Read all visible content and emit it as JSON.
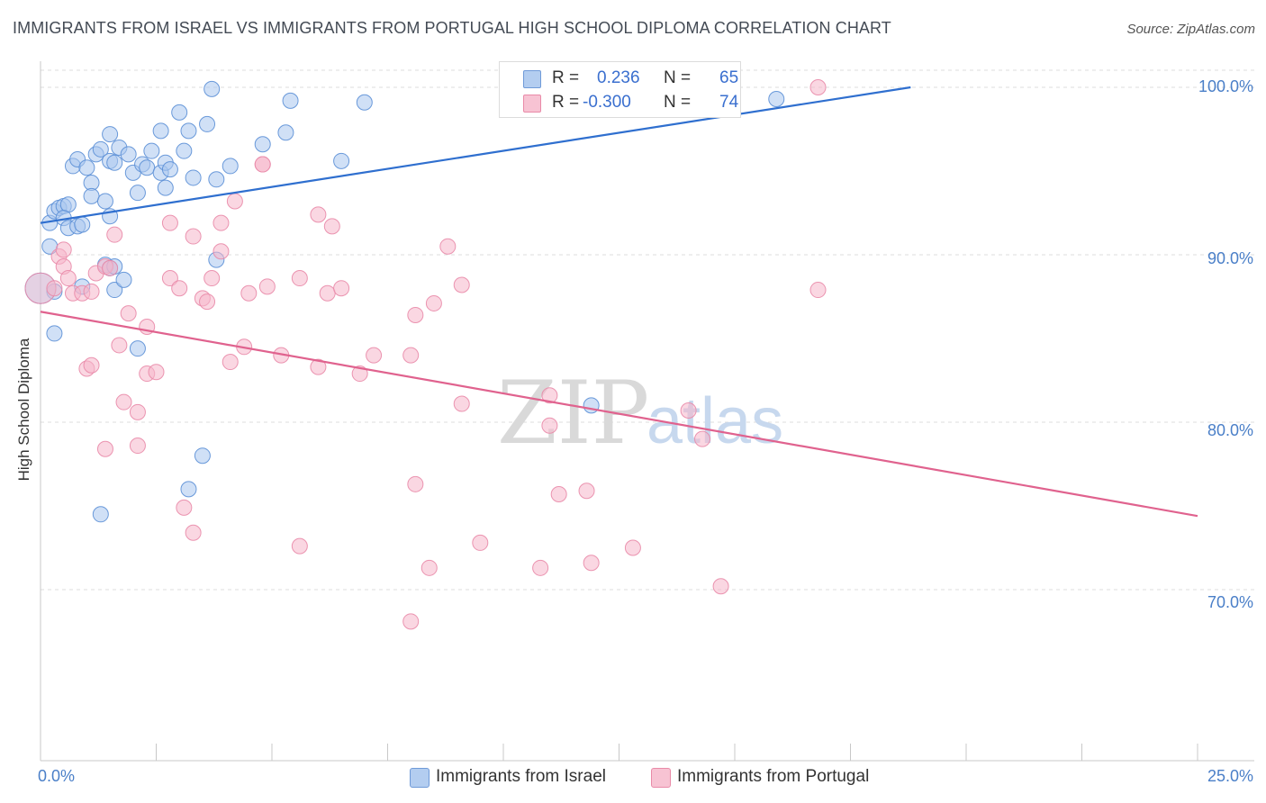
{
  "title": "IMMIGRANTS FROM ISRAEL VS IMMIGRANTS FROM PORTUGAL HIGH SCHOOL DIPLOMA CORRELATION CHART",
  "source": "Source: ZipAtlas.com",
  "watermark": {
    "part1": "ZIP",
    "part2": "atlas"
  },
  "legend_top": {
    "rows": [
      {
        "r_label": "R =",
        "r_value": "0.236",
        "n_label": "N =",
        "n_value": "65"
      },
      {
        "r_label": "R =",
        "r_value": "-0.300",
        "n_label": "N =",
        "n_value": "74"
      }
    ]
  },
  "legend_bottom": {
    "israel": "Immigrants from Israel",
    "portugal": "Immigrants from Portugal"
  },
  "colors": {
    "israel_fill": "#a9c6ee",
    "israel_stroke": "#5b8fd6",
    "israel_line": "#2f6fcf",
    "portugal_fill": "#f5b7ca",
    "portugal_stroke": "#e98aa8",
    "portugal_line": "#e0628e",
    "tick_text": "#4a7fc8",
    "grid": "#dddddd"
  },
  "chart_data": {
    "type": "scatter",
    "title": "IMMIGRANTS FROM ISRAEL VS IMMIGRANTS FROM PORTUGAL HIGH SCHOOL DIPLOMA CORRELATION CHART",
    "xlabel": "",
    "ylabel": "High School Diploma",
    "xlim": [
      0,
      25
    ],
    "ylim": [
      60,
      101
    ],
    "x_tick_labels": [
      "0.0%",
      "25.0%"
    ],
    "y_ticks": [
      70,
      80,
      90,
      100
    ],
    "y_tick_labels": [
      "70.0%",
      "80.0%",
      "90.0%",
      "100.0%"
    ],
    "grid": true,
    "legend_position": "top-center",
    "series": [
      {
        "name": "Immigrants from Israel",
        "R": 0.236,
        "N": 65,
        "trendline": {
          "x": [
            0.0,
            18.8
          ],
          "y": [
            91.9,
            100.0
          ]
        },
        "points": [
          [
            0.2,
            91.9
          ],
          [
            0.3,
            92.6
          ],
          [
            0.4,
            92.8
          ],
          [
            0.5,
            92.9
          ],
          [
            0.6,
            93.0
          ],
          [
            0.5,
            92.2
          ],
          [
            0.6,
            91.6
          ],
          [
            0.8,
            91.7
          ],
          [
            0.9,
            91.8
          ],
          [
            0.7,
            95.3
          ],
          [
            0.8,
            95.7
          ],
          [
            1.0,
            95.2
          ],
          [
            1.1,
            94.3
          ],
          [
            1.1,
            93.5
          ],
          [
            1.2,
            96.0
          ],
          [
            1.3,
            96.3
          ],
          [
            1.5,
            95.6
          ],
          [
            1.6,
            95.5
          ],
          [
            1.5,
            97.2
          ],
          [
            1.7,
            96.4
          ],
          [
            1.9,
            96.0
          ],
          [
            2.0,
            94.9
          ],
          [
            2.1,
            93.7
          ],
          [
            2.2,
            95.4
          ],
          [
            2.3,
            95.2
          ],
          [
            2.4,
            96.2
          ],
          [
            2.6,
            94.9
          ],
          [
            2.7,
            95.5
          ],
          [
            2.8,
            95.1
          ],
          [
            2.7,
            94.0
          ],
          [
            2.6,
            97.4
          ],
          [
            3.0,
            98.5
          ],
          [
            3.1,
            96.2
          ],
          [
            3.2,
            97.4
          ],
          [
            3.3,
            94.6
          ],
          [
            3.6,
            97.8
          ],
          [
            3.7,
            99.9
          ],
          [
            3.8,
            94.5
          ],
          [
            4.1,
            95.3
          ],
          [
            4.8,
            96.6
          ],
          [
            5.3,
            97.3
          ],
          [
            5.4,
            99.2
          ],
          [
            6.5,
            95.6
          ],
          [
            7.0,
            99.1
          ],
          [
            10.3,
            99.9
          ],
          [
            11.0,
            99.8
          ],
          [
            15.9,
            99.3
          ],
          [
            1.4,
            93.2
          ],
          [
            1.5,
            92.3
          ],
          [
            0.2,
            90.5
          ],
          [
            0.3,
            87.8
          ],
          [
            0.9,
            88.1
          ],
          [
            1.4,
            89.4
          ],
          [
            1.5,
            89.2
          ],
          [
            1.6,
            87.9
          ],
          [
            1.8,
            88.5
          ],
          [
            3.8,
            89.7
          ],
          [
            0.3,
            85.3
          ],
          [
            2.1,
            84.4
          ],
          [
            3.5,
            78.0
          ],
          [
            3.2,
            76.0
          ],
          [
            1.3,
            74.5
          ],
          [
            11.9,
            81.0
          ],
          [
            0.0,
            88.0
          ],
          [
            1.6,
            89.3
          ]
        ]
      },
      {
        "name": "Immigrants from Portugal",
        "R": -0.3,
        "N": 74,
        "trendline": {
          "x": [
            0.0,
            25.0
          ],
          "y": [
            86.6,
            74.4
          ]
        },
        "points": [
          [
            0.0,
            88.0
          ],
          [
            0.3,
            88.0
          ],
          [
            0.4,
            89.9
          ],
          [
            0.5,
            89.3
          ],
          [
            0.5,
            90.3
          ],
          [
            0.6,
            88.6
          ],
          [
            0.7,
            87.7
          ],
          [
            0.9,
            87.7
          ],
          [
            1.1,
            87.8
          ],
          [
            1.2,
            88.9
          ],
          [
            1.4,
            89.3
          ],
          [
            1.5,
            89.2
          ],
          [
            1.6,
            91.2
          ],
          [
            1.9,
            86.5
          ],
          [
            2.3,
            85.7
          ],
          [
            2.8,
            91.9
          ],
          [
            2.8,
            88.6
          ],
          [
            3.0,
            88.0
          ],
          [
            3.3,
            91.1
          ],
          [
            3.5,
            87.4
          ],
          [
            3.6,
            87.2
          ],
          [
            3.7,
            88.6
          ],
          [
            3.9,
            90.2
          ],
          [
            3.9,
            91.9
          ],
          [
            4.2,
            93.2
          ],
          [
            4.5,
            87.7
          ],
          [
            4.8,
            95.4
          ],
          [
            4.8,
            95.4
          ],
          [
            4.9,
            88.1
          ],
          [
            5.2,
            84.0
          ],
          [
            4.4,
            84.5
          ],
          [
            4.1,
            83.6
          ],
          [
            1.0,
            83.2
          ],
          [
            1.1,
            83.4
          ],
          [
            1.7,
            84.6
          ],
          [
            1.8,
            81.2
          ],
          [
            2.1,
            80.6
          ],
          [
            2.3,
            82.9
          ],
          [
            2.5,
            83.0
          ],
          [
            1.4,
            78.4
          ],
          [
            2.1,
            78.6
          ],
          [
            3.1,
            74.9
          ],
          [
            3.3,
            73.4
          ],
          [
            5.6,
            88.6
          ],
          [
            6.0,
            92.4
          ],
          [
            6.3,
            91.7
          ],
          [
            6.2,
            87.7
          ],
          [
            6.5,
            88.0
          ],
          [
            6.0,
            83.3
          ],
          [
            6.9,
            82.9
          ],
          [
            7.2,
            84.0
          ],
          [
            8.0,
            84.0
          ],
          [
            8.1,
            86.4
          ],
          [
            8.5,
            87.1
          ],
          [
            8.8,
            90.5
          ],
          [
            9.1,
            88.2
          ],
          [
            9.1,
            81.1
          ],
          [
            11.0,
            81.6
          ],
          [
            11.0,
            79.8
          ],
          [
            11.2,
            75.7
          ],
          [
            11.8,
            75.9
          ],
          [
            8.1,
            76.3
          ],
          [
            5.6,
            72.6
          ],
          [
            9.5,
            72.8
          ],
          [
            10.8,
            71.3
          ],
          [
            11.9,
            71.6
          ],
          [
            12.8,
            72.5
          ],
          [
            8.4,
            71.3
          ],
          [
            8.0,
            68.1
          ],
          [
            14.0,
            80.7
          ],
          [
            14.3,
            79.0
          ],
          [
            14.7,
            70.2
          ],
          [
            16.8,
            87.9
          ],
          [
            16.8,
            100.0
          ]
        ]
      }
    ]
  }
}
